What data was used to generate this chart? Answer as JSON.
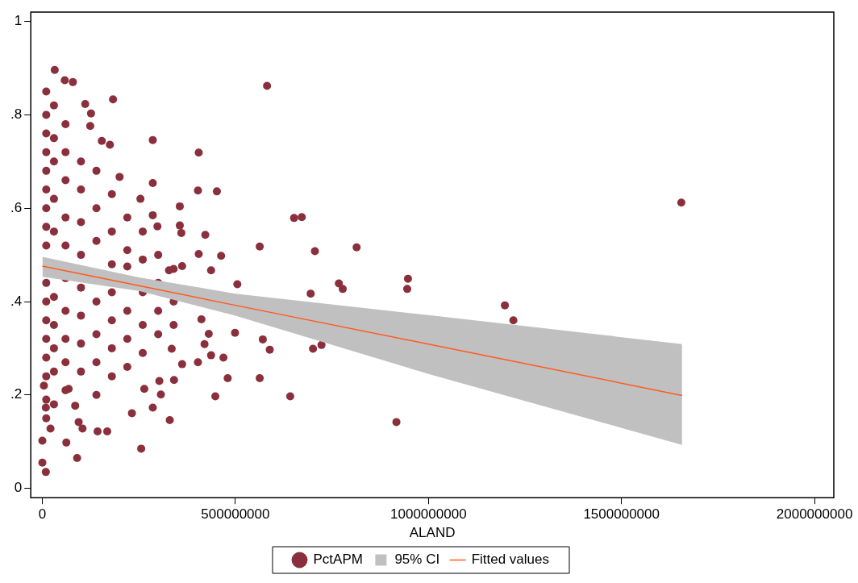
{
  "chart_data": {
    "type": "scatter",
    "xlabel": "ALAND",
    "grid": false,
    "legend": "bottom",
    "xlim": [
      -30000000,
      2050000000
    ],
    "ylim": [
      -0.02,
      1.02
    ],
    "xticks": [
      0,
      500000000,
      1000000000,
      1500000000,
      2000000000
    ],
    "yticks": [
      {
        "value": 0,
        "label": "0"
      },
      {
        "value": 0.2,
        "label": ".2"
      },
      {
        "value": 0.4,
        "label": ".4"
      },
      {
        "value": 0.6,
        "label": ".6"
      },
      {
        "value": 0.8,
        "label": ".8"
      },
      {
        "value": 1,
        "label": "1"
      }
    ],
    "series": [
      {
        "name": "PctAPM",
        "type": "scatter",
        "marker": "circle",
        "color": "#8a2f3c",
        "x": [
          582000000,
          1655000000,
          405000000,
          652000000,
          672000000,
          563000000,
          706000000,
          814000000,
          505000000,
          695000000,
          768000000,
          778000000,
          947000000,
          945000000,
          1198000000,
          1220000000,
          499000000,
          571000000,
          589000000,
          701000000,
          723000000,
          563000000,
          642000000,
          917000000,
          32000000,
          58000000,
          79000000,
          183000000,
          111000000,
          126000000,
          124000000,
          286000000,
          154000000,
          175000000,
          200000000,
          286000000,
          254000000,
          403000000,
          452000000,
          356000000,
          286000000,
          356000000,
          360000000,
          298000000,
          422000000,
          463000000,
          405000000,
          328000000,
          362000000,
          437000000,
          0,
          9000000,
          0,
          62000000,
          90000000,
          256000000,
          143000000,
          168000000,
          94000000,
          104000000,
          330000000,
          232000000,
          286000000,
          85000000,
          21000000,
          9000000,
          448000000,
          307000000,
          264000000,
          68000000,
          4000000,
          480000000,
          341000000,
          303000000,
          362000000,
          403000000,
          469000000,
          335000000,
          437000000,
          420000000,
          431000000,
          412000000,
          10000000,
          10000000,
          10000000,
          10000000,
          10000000,
          10000000,
          10000000,
          10000000,
          10000000,
          10000000,
          10000000,
          10000000,
          10000000,
          10000000,
          10000000,
          10000000,
          10000000,
          30000000,
          30000000,
          30000000,
          30000000,
          30000000,
          30000000,
          30000000,
          30000000,
          30000000,
          30000000,
          60000000,
          60000000,
          60000000,
          60000000,
          60000000,
          60000000,
          60000000,
          60000000,
          60000000,
          60000000,
          100000000,
          100000000,
          100000000,
          100000000,
          100000000,
          100000000,
          100000000,
          100000000,
          140000000,
          140000000,
          140000000,
          140000000,
          140000000,
          140000000,
          140000000,
          180000000,
          180000000,
          180000000,
          180000000,
          180000000,
          180000000,
          180000000,
          220000000,
          220000000,
          220000000,
          220000000,
          220000000,
          220000000,
          260000000,
          260000000,
          260000000,
          260000000,
          260000000,
          300000000,
          300000000,
          300000000,
          300000000,
          340000000,
          340000000,
          340000000
        ],
        "values": [
          0.862,
          0.612,
          0.719,
          0.579,
          0.581,
          0.518,
          0.508,
          0.516,
          0.437,
          0.417,
          0.439,
          0.427,
          0.449,
          0.427,
          0.392,
          0.36,
          0.333,
          0.319,
          0.297,
          0.299,
          0.307,
          0.236,
          0.197,
          0.142,
          0.896,
          0.874,
          0.87,
          0.833,
          0.823,
          0.803,
          0.776,
          0.746,
          0.744,
          0.736,
          0.667,
          0.654,
          0.62,
          0.638,
          0.636,
          0.604,
          0.585,
          0.563,
          0.547,
          0.561,
          0.543,
          0.498,
          0.502,
          0.467,
          0.476,
          0.467,
          0.055,
          0.035,
          0.102,
          0.098,
          0.065,
          0.085,
          0.122,
          0.122,
          0.142,
          0.128,
          0.146,
          0.161,
          0.173,
          0.177,
          0.128,
          0.173,
          0.197,
          0.201,
          0.213,
          0.213,
          0.22,
          0.236,
          0.232,
          0.23,
          0.266,
          0.27,
          0.28,
          0.299,
          0.285,
          0.309,
          0.331,
          0.362,
          0.85,
          0.8,
          0.76,
          0.72,
          0.68,
          0.64,
          0.6,
          0.56,
          0.52,
          0.44,
          0.4,
          0.36,
          0.32,
          0.28,
          0.24,
          0.19,
          0.15,
          0.82,
          0.75,
          0.7,
          0.62,
          0.55,
          0.41,
          0.35,
          0.3,
          0.25,
          0.18,
          0.78,
          0.72,
          0.66,
          0.58,
          0.52,
          0.45,
          0.38,
          0.32,
          0.27,
          0.21,
          0.7,
          0.64,
          0.57,
          0.5,
          0.43,
          0.37,
          0.31,
          0.25,
          0.68,
          0.6,
          0.53,
          0.4,
          0.33,
          0.27,
          0.2,
          0.63,
          0.55,
          0.48,
          0.42,
          0.36,
          0.3,
          0.24,
          0.58,
          0.51,
          0.475,
          0.38,
          0.32,
          0.26,
          0.55,
          0.49,
          0.42,
          0.35,
          0.29,
          0.5,
          0.44,
          0.38,
          0.33,
          0.47,
          0.4,
          0.35
        ]
      },
      {
        "name": "95% CI",
        "type": "area",
        "color": "#c0c0c0"
      },
      {
        "name": "Fitted values",
        "type": "line",
        "color": "#ff5a1f",
        "line_style": "solid",
        "x": [
          0,
          250000000,
          500000000,
          1000000000,
          1657000000
        ],
        "values": [
          0.476,
          0.434,
          0.392,
          0.309,
          0.199
        ],
        "lower": [
          0.453,
          0.423,
          0.37,
          0.245,
          0.093
        ],
        "upper": [
          0.496,
          0.452,
          0.417,
          0.371,
          0.309
        ]
      }
    ]
  }
}
